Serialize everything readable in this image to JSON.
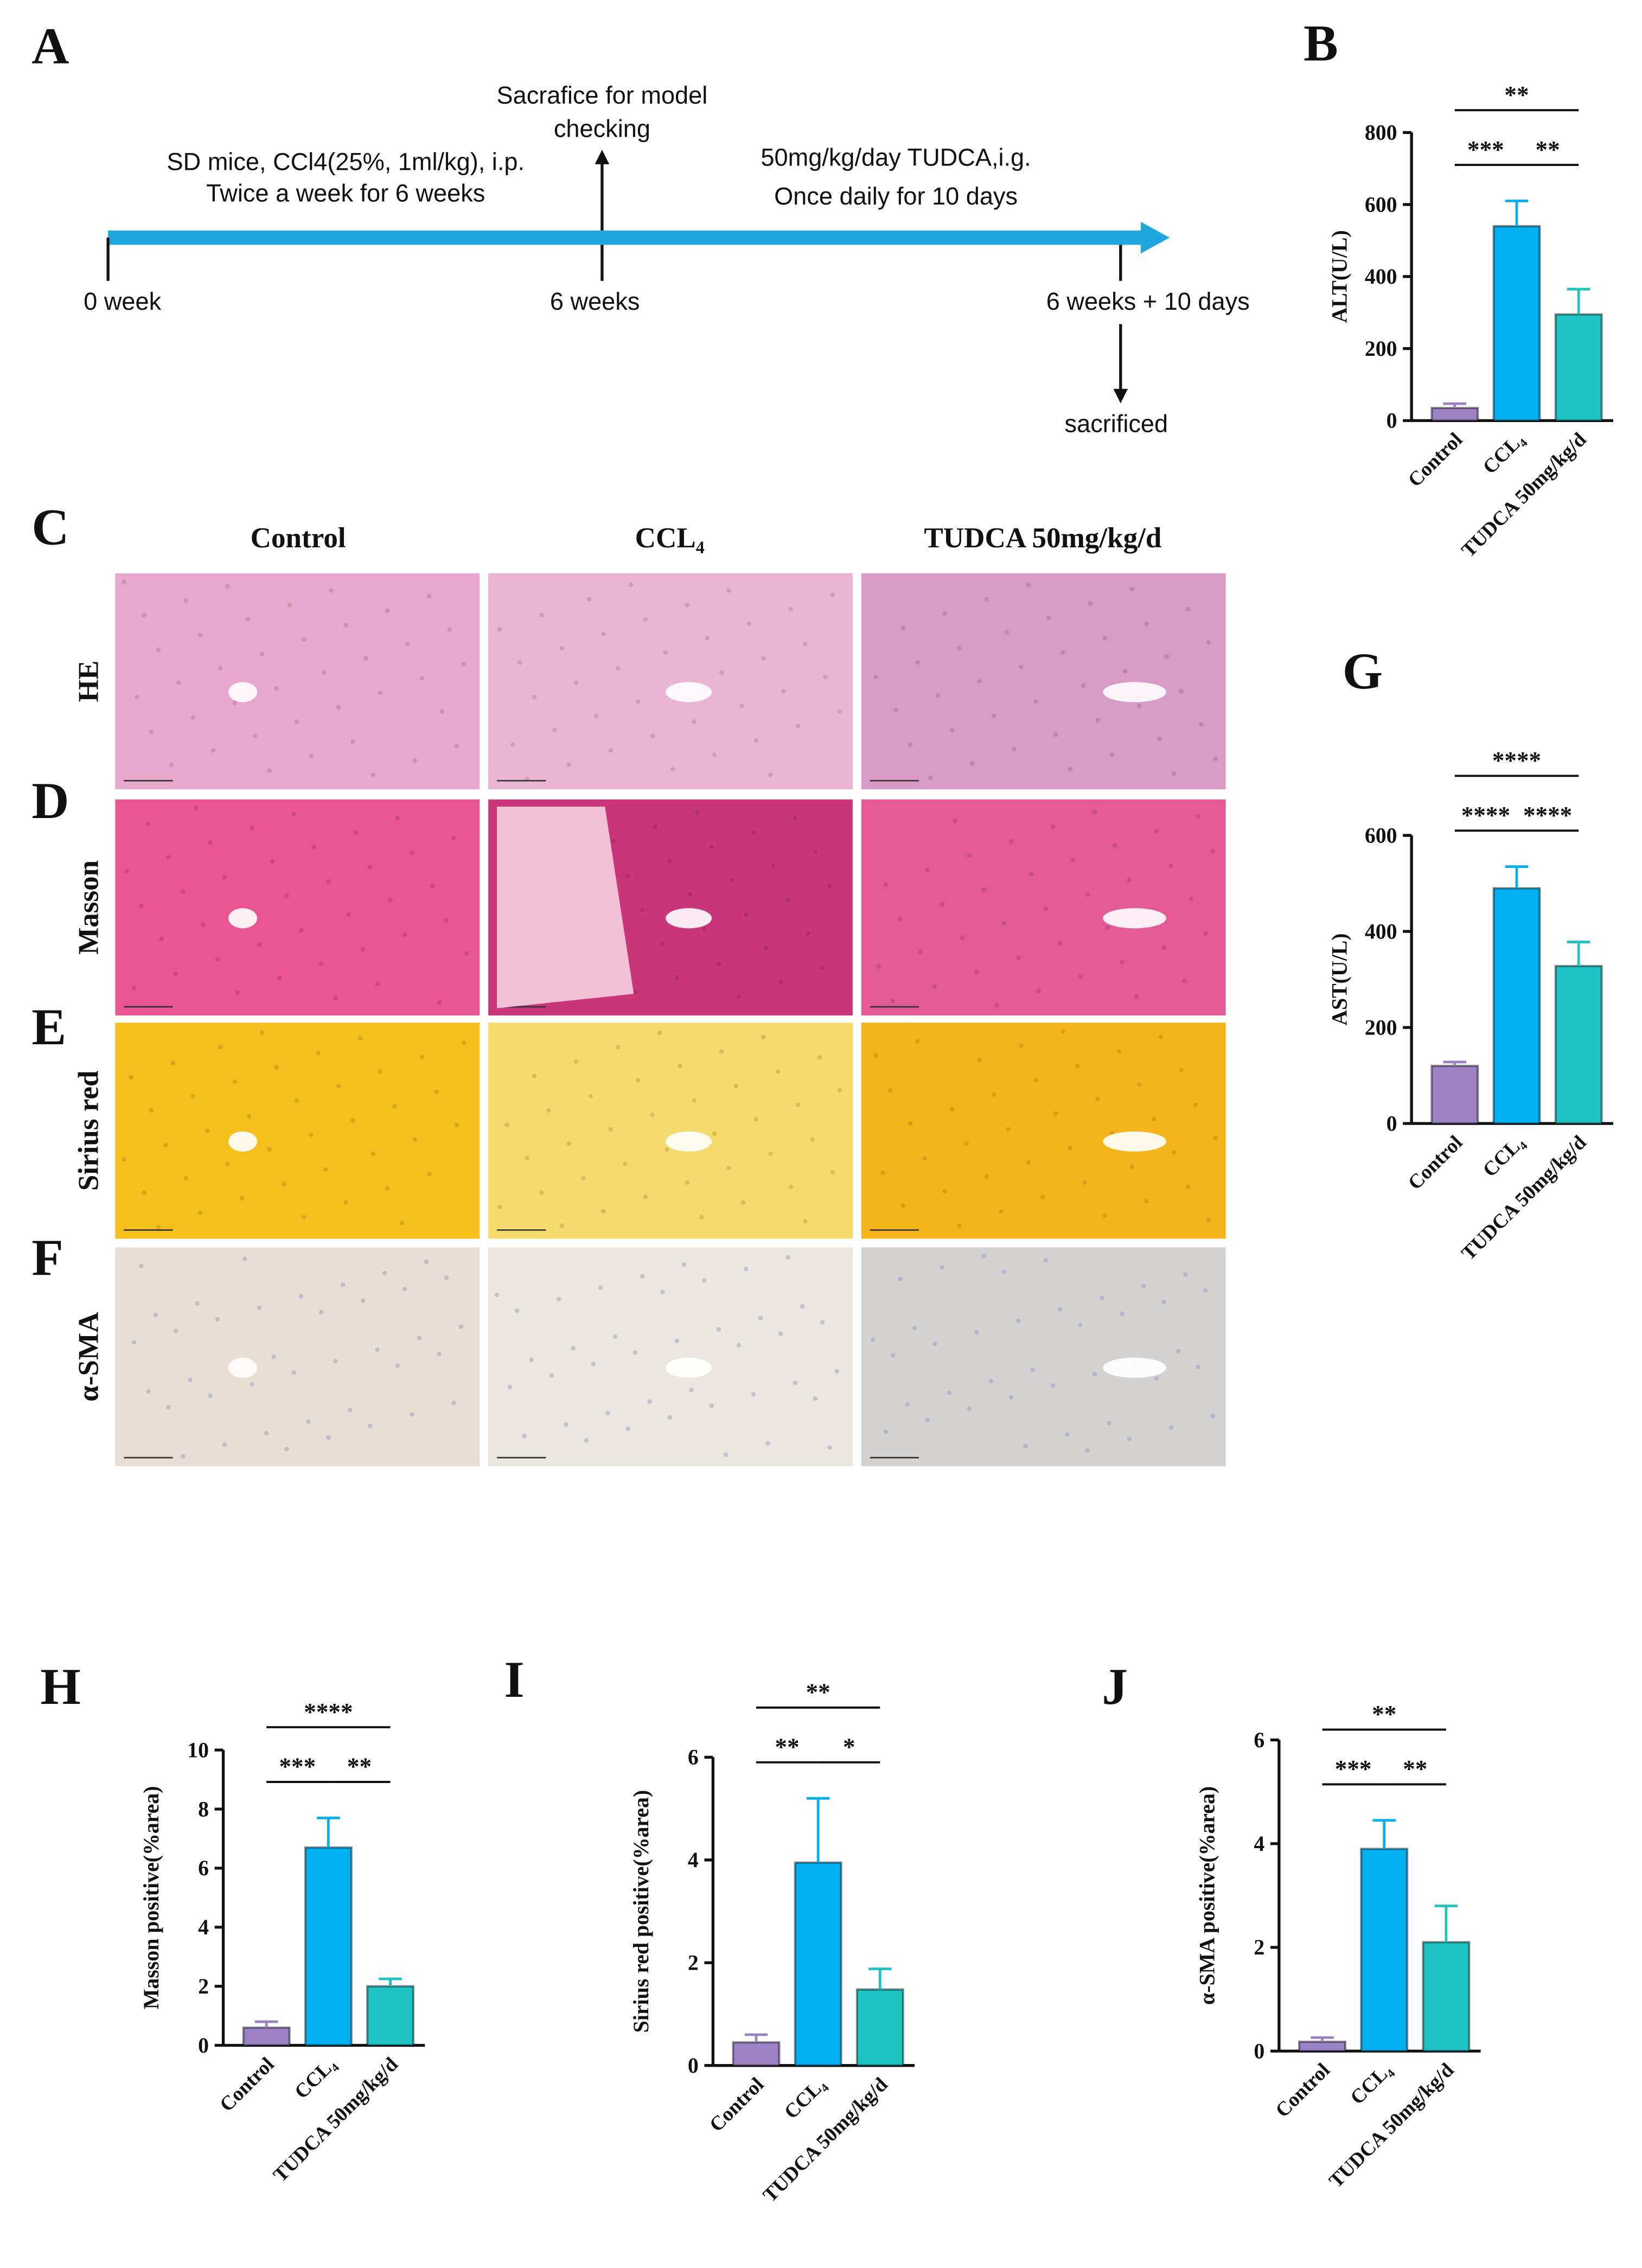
{
  "timeline": {
    "panel": "A",
    "treatment_1": [
      "SD mice, CCl4(25%, 1ml/kg), i.p.",
      "Twice a week for 6 weeks"
    ],
    "checkpoint": [
      "Sacrafice for model",
      "checking"
    ],
    "treatment_2": [
      "50mg/kg/day TUDCA,i.g.",
      "Once daily for 10 days"
    ],
    "times": [
      "0 week",
      "6 weeks",
      "6 weeks + 10 days"
    ],
    "end": "sacrificed"
  },
  "histology": {
    "panels": [
      "C",
      "D",
      "E",
      "F"
    ],
    "columns": [
      "Control",
      "CCL₄",
      "TUDCA 50mg/kg/d"
    ],
    "rows": [
      "HE",
      "Masson",
      "Sirius red",
      "α-SMA"
    ]
  },
  "chart_data": [
    {
      "type": "bar",
      "panel": "B",
      "ylabel": "ALT(U/L)",
      "categories": [
        "Control",
        "CCL₄",
        "TUDCA 50mg/kg/d"
      ],
      "values": [
        35,
        540,
        295
      ],
      "errors": [
        12,
        70,
        70
      ],
      "colors": [
        "#9b82c4",
        "#00b0f0",
        "#1dc3c3"
      ],
      "ylim": [
        0,
        800
      ],
      "yticks": [
        0,
        200,
        400,
        600,
        800
      ],
      "significance": [
        "**",
        "***",
        "**"
      ]
    },
    {
      "type": "bar",
      "panel": "G",
      "ylabel": "AST(U/L)",
      "categories": [
        "Control",
        "CCL₄",
        "TUDCA 50mg/kg/d"
      ],
      "values": [
        120,
        490,
        328
      ],
      "errors": [
        8,
        45,
        50
      ],
      "colors": [
        "#9b82c4",
        "#00b0f0",
        "#1dc3c3"
      ],
      "ylim": [
        0,
        600
      ],
      "yticks": [
        0,
        200,
        400,
        600
      ],
      "significance": [
        "****",
        "****",
        "****"
      ]
    },
    {
      "type": "bar",
      "panel": "H",
      "ylabel": "Masson positive(%area)",
      "categories": [
        "Control",
        "CCL₄",
        "TUDCA 50mg/kg/d"
      ],
      "values": [
        0.6,
        6.7,
        2.0
      ],
      "errors": [
        0.2,
        1.0,
        0.25
      ],
      "colors": [
        "#9b82c4",
        "#00b0f0",
        "#1dc3c3"
      ],
      "ylim": [
        0,
        10
      ],
      "yticks": [
        0,
        2,
        4,
        6,
        8,
        10
      ],
      "significance": [
        "****",
        "***",
        "**"
      ]
    },
    {
      "type": "bar",
      "panel": "I",
      "ylabel": "Sirius red positive(%area)",
      "categories": [
        "Control",
        "CCL₄",
        "TUDCA 50mg/kg/d"
      ],
      "values": [
        0.45,
        3.95,
        1.48
      ],
      "errors": [
        0.15,
        1.25,
        0.4
      ],
      "colors": [
        "#9b82c4",
        "#00b0f0",
        "#1dc3c3"
      ],
      "ylim": [
        0,
        6
      ],
      "yticks": [
        0,
        2,
        4,
        6
      ],
      "significance": [
        "**",
        "**",
        "*"
      ]
    },
    {
      "type": "bar",
      "panel": "J",
      "ylabel": "α-SMA positive(%area)",
      "categories": [
        "Control",
        "CCL₄",
        "TUDCA 50mg/kg/d"
      ],
      "values": [
        0.18,
        3.9,
        2.1
      ],
      "errors": [
        0.08,
        0.55,
        0.7
      ],
      "colors": [
        "#9b82c4",
        "#00b0f0",
        "#1dc3c3"
      ],
      "ylim": [
        0,
        6
      ],
      "yticks": [
        0,
        2,
        4,
        6
      ],
      "significance": [
        "**",
        "***",
        "**"
      ]
    }
  ]
}
